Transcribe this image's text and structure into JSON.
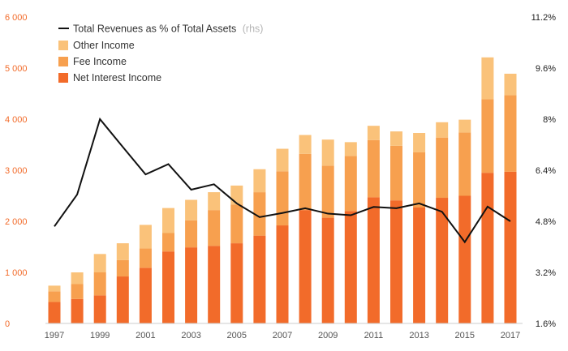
{
  "colors": {
    "net_interest": "#f26b2a",
    "fee": "#f7a04f",
    "other": "#fac27a",
    "line": "#111111",
    "left_axis_text": "#f26b2a",
    "right_axis_text": "#222222",
    "x_axis_text": "#555555",
    "baseline": "#cccccc"
  },
  "chart_data": {
    "type": "bar",
    "stacked": true,
    "categories": [
      "1997",
      "1998",
      "1999",
      "2000",
      "2001",
      "2002",
      "2003",
      "2004",
      "2005",
      "2006",
      "2007",
      "2008",
      "2009",
      "2010",
      "2011",
      "2012",
      "2013",
      "2014",
      "2015",
      "2016",
      "2017"
    ],
    "x_tick_labels": [
      "1997",
      "1999",
      "2001",
      "2003",
      "2005",
      "2007",
      "2009",
      "2011",
      "2013",
      "2015",
      "2017"
    ],
    "series": [
      {
        "name": "Net Interest Income",
        "color_key": "net_interest",
        "values": [
          420,
          480,
          550,
          920,
          1090,
          1410,
          1490,
          1520,
          1570,
          1720,
          1920,
          2220,
          2070,
          2200,
          2470,
          2410,
          2270,
          2460,
          2500,
          2950,
          2970
        ]
      },
      {
        "name": "Fee Income",
        "color_key": "fee",
        "values": [
          210,
          290,
          450,
          320,
          380,
          360,
          530,
          700,
          760,
          850,
          1060,
          1100,
          1020,
          1080,
          1120,
          1070,
          1080,
          1180,
          1240,
          1440,
          1500
        ]
      },
      {
        "name": "Other Income",
        "color_key": "other",
        "values": [
          110,
          230,
          360,
          330,
          460,
          490,
          400,
          350,
          370,
          450,
          440,
          370,
          510,
          270,
          280,
          280,
          380,
          300,
          250,
          820,
          420
        ]
      }
    ],
    "line_series": {
      "name": "Total Revenues as % of Total Assets",
      "axis_note": "(rhs)",
      "values": [
        4.64,
        5.64,
        8.0,
        7.13,
        6.27,
        6.59,
        5.79,
        5.96,
        5.36,
        4.93,
        5.06,
        5.21,
        5.04,
        4.99,
        5.25,
        5.21,
        5.36,
        5.1,
        4.15,
        5.26,
        4.8
      ]
    },
    "y_left": {
      "ylim": [
        0,
        6000
      ],
      "ticks": [
        0,
        1000,
        2000,
        3000,
        4000,
        5000,
        6000
      ],
      "tick_labels": [
        "0",
        "1 000",
        "2 000",
        "3 000",
        "4 000",
        "5 000",
        "6 000"
      ]
    },
    "y_right": {
      "ylim": [
        1.6,
        11.2
      ],
      "ticks": [
        1.6,
        3.2,
        4.8,
        6.4,
        8.0,
        9.6,
        11.2
      ],
      "tick_labels": [
        "1.6%",
        "3.2%",
        "4.8%",
        "6.4%",
        "8%",
        "9.6%",
        "11.2%"
      ]
    },
    "title": "",
    "xlabel": "",
    "ylabel": "",
    "grid": false,
    "legend_position": "top-left"
  }
}
